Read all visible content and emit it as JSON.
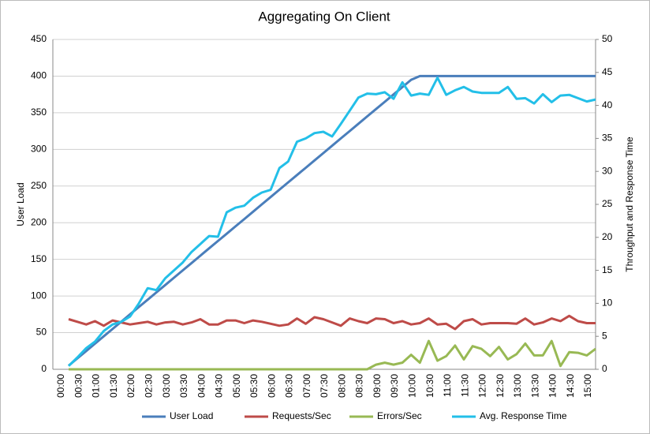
{
  "chart_data": {
    "type": "line",
    "title": "Aggregating On Client",
    "y_label": "User Load",
    "y2_label": "Throughput and Response Time",
    "categories": [
      "00:00",
      null,
      "00:30",
      null,
      "01:00",
      null,
      "01:30",
      null,
      "02:00",
      null,
      "02:30",
      null,
      "03:00",
      null,
      "03:30",
      null,
      "04:00",
      null,
      "04:30",
      null,
      "05:00",
      null,
      "05:30",
      null,
      "06:00",
      null,
      "06:30",
      null,
      "07:00",
      null,
      "07:30",
      null,
      "08:00",
      null,
      "08:30",
      null,
      "09:00",
      null,
      "09:30",
      null,
      "10:00",
      null,
      "10:30",
      null,
      "11:00",
      null,
      "11:30",
      null,
      "12:00",
      null,
      "12:30",
      null,
      "13:00",
      null,
      "13:30",
      null,
      "14:00",
      null,
      "14:30",
      null,
      "15:00"
    ],
    "ylim": [
      0,
      450
    ],
    "yticks": [
      0,
      50,
      100,
      150,
      200,
      250,
      300,
      350,
      400,
      450
    ],
    "y2lim": [
      0,
      50
    ],
    "y2ticks": [
      0,
      5,
      10,
      15,
      20,
      25,
      30,
      35,
      40,
      45,
      50
    ],
    "grid": true,
    "legend": "bottom",
    "series": [
      {
        "name": "User Load",
        "color": "#4a7ebb",
        "values": [
          5,
          15,
          25,
          35,
          45,
          55,
          65,
          75,
          85,
          95,
          105,
          115,
          125,
          135,
          145,
          155,
          165,
          175,
          185,
          195,
          205,
          215,
          225,
          235,
          245,
          255,
          265,
          275,
          285,
          295,
          305,
          315,
          325,
          335,
          345,
          355,
          365,
          375,
          385,
          395,
          400,
          400,
          400,
          400,
          400,
          400,
          400,
          400,
          400,
          400,
          400,
          400,
          400,
          400,
          400,
          400,
          400,
          400,
          400,
          400,
          400
        ]
      },
      {
        "name": "Requests/Sec",
        "color": "#be4b48",
        "axis": "y2",
        "values": [
          7.6,
          7.2,
          6.8,
          7.3,
          6.6,
          7.4,
          7.1,
          6.8,
          7.0,
          7.2,
          6.8,
          7.1,
          7.2,
          6.8,
          7.1,
          7.6,
          6.8,
          6.8,
          7.4,
          7.4,
          7.0,
          7.4,
          7.2,
          6.9,
          6.6,
          6.8,
          7.7,
          6.9,
          7.9,
          7.6,
          7.1,
          6.6,
          7.7,
          7.3,
          7.0,
          7.7,
          7.6,
          7.0,
          7.3,
          6.8,
          7.0,
          7.7,
          6.8,
          6.9,
          6.1,
          7.3,
          7.6,
          6.8,
          7.0,
          7.0,
          7.0,
          6.9,
          7.7,
          6.8,
          7.1,
          7.7,
          7.3,
          8.1,
          7.3,
          7.0,
          7.0
        ]
      },
      {
        "name": "Errors/Sec",
        "color": "#98b954",
        "axis": "y2",
        "values": [
          0,
          0,
          0,
          0,
          0,
          0,
          0,
          0,
          0,
          0,
          0,
          0,
          0,
          0,
          0,
          0,
          0,
          0,
          0,
          0,
          0,
          0,
          0,
          0,
          0,
          0,
          0,
          0,
          0,
          0,
          0,
          0,
          0,
          0,
          0,
          0.7,
          1.0,
          0.7,
          1.0,
          2.2,
          1.0,
          4.3,
          1.3,
          2.0,
          3.6,
          1.5,
          3.5,
          3.1,
          2.0,
          3.4,
          1.5,
          2.3,
          3.9,
          2.1,
          2.1,
          4.3,
          0.5,
          2.6,
          2.5,
          2.1,
          3.1
        ]
      },
      {
        "name": "Avg. Response Time",
        "color": "#23bfe8",
        "axis": "y2",
        "values": [
          0.5,
          1.8,
          3.2,
          4.2,
          5.8,
          6.8,
          7.2,
          8.0,
          10.0,
          12.3,
          12.0,
          13.8,
          15.0,
          16.2,
          17.8,
          19.0,
          20.2,
          20.1,
          23.8,
          24.5,
          24.8,
          26.0,
          26.8,
          27.2,
          30.5,
          31.5,
          34.5,
          35.0,
          35.8,
          36.0,
          35.3,
          37.2,
          39.2,
          41.2,
          41.8,
          41.7,
          42.0,
          41.0,
          43.5,
          41.5,
          41.8,
          41.6,
          44.2,
          41.6,
          42.3,
          42.8,
          42.1,
          41.9,
          41.9,
          41.9,
          42.8,
          41.0,
          41.1,
          40.3,
          41.7,
          40.5,
          41.5,
          41.6,
          41.1,
          40.6,
          40.9
        ]
      }
    ]
  }
}
